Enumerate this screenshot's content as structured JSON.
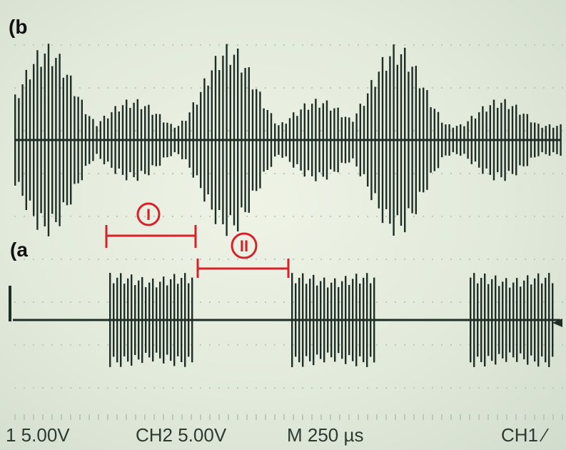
{
  "panels": {
    "top_label": "(b",
    "bottom_label": "(a"
  },
  "markers": {
    "first": "I",
    "second": "II",
    "color": "#d8202a"
  },
  "status_bar": {
    "ch1_scale": "1  5.00V",
    "ch2_scale": "CH2  5.00V",
    "timebase": "M 250 µs",
    "trigger": "CH1 ⁄"
  },
  "colors": {
    "trace": "#1f2d27",
    "screen": "#e6ede0",
    "grid": "#b9c9bd"
  }
}
